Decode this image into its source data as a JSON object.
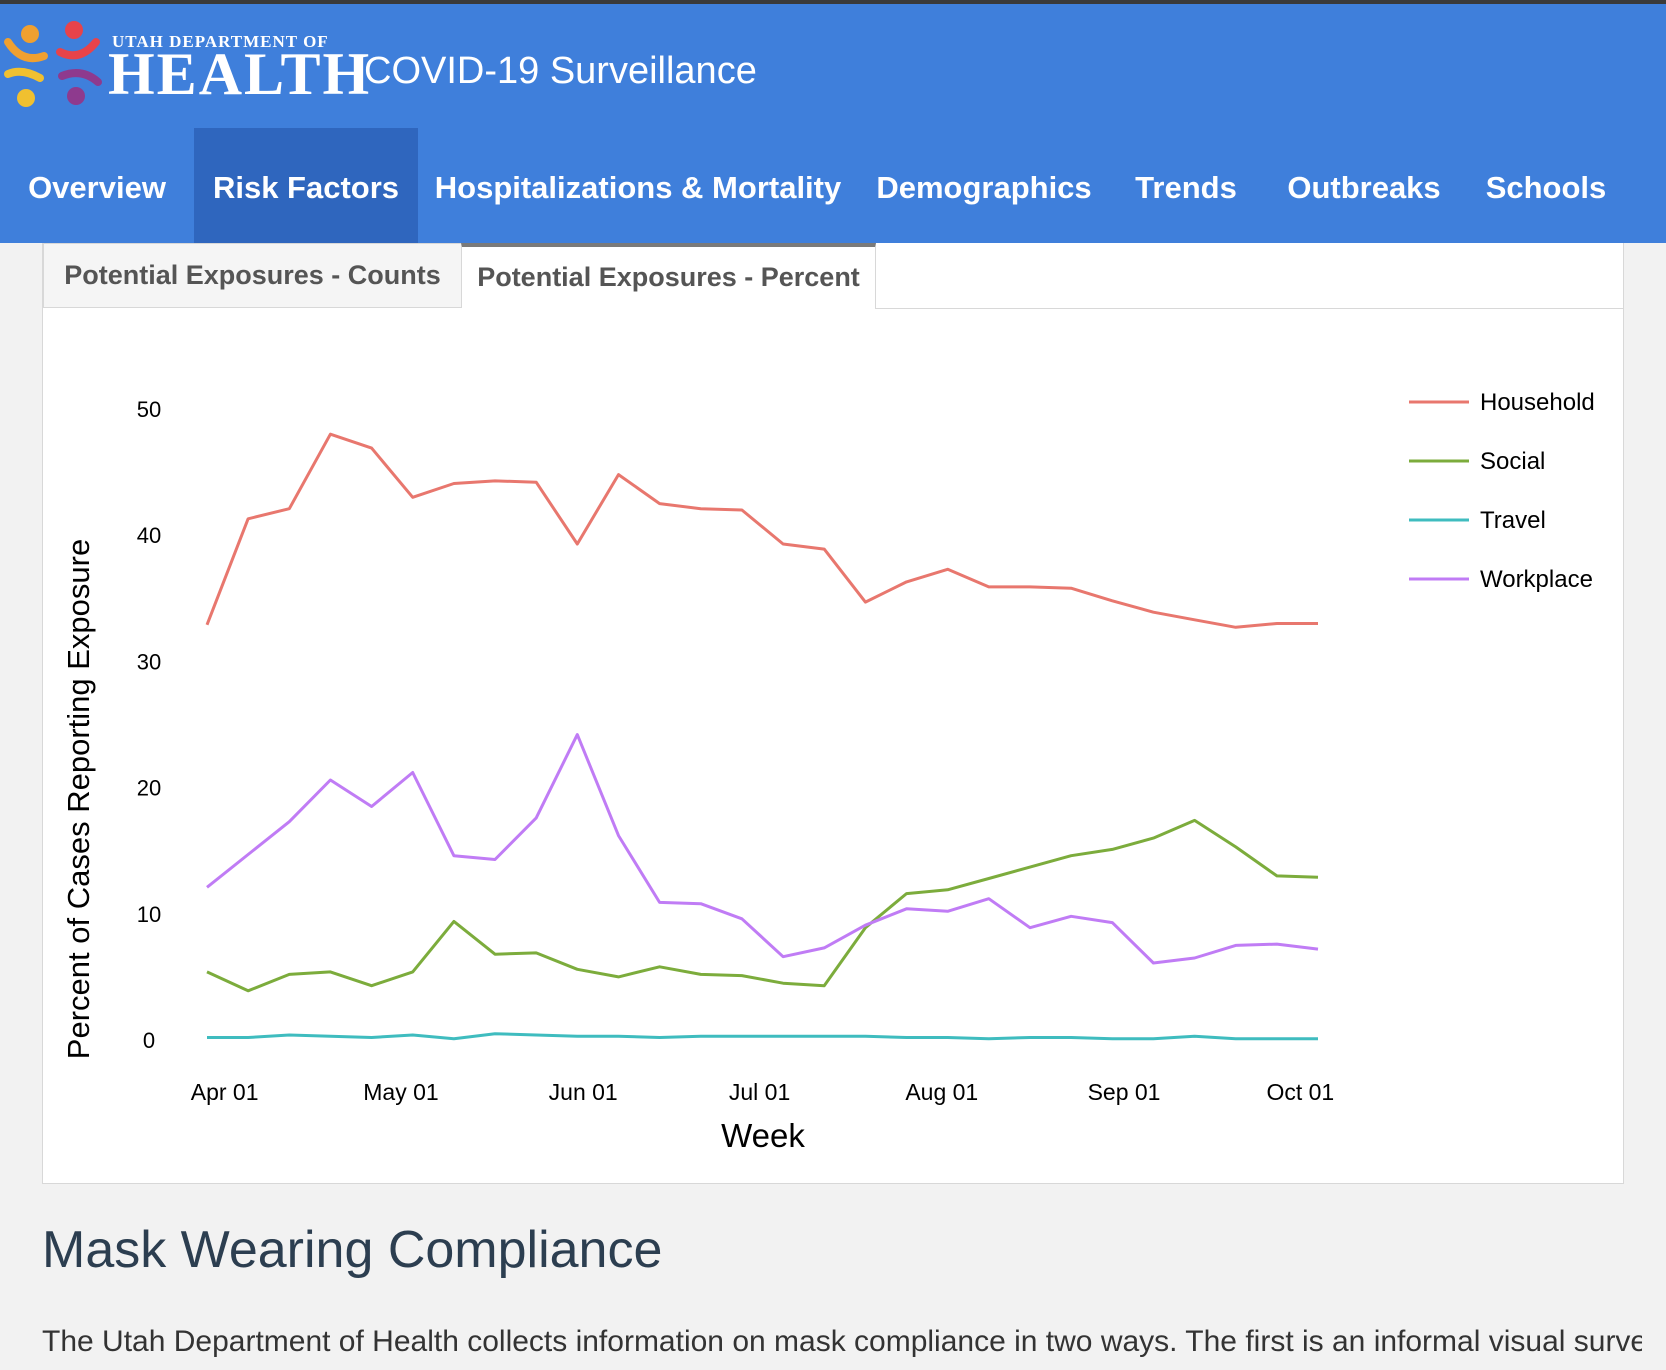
{
  "header": {
    "logo_small": "UTAH DEPARTMENT OF",
    "logo_big": "HEALTH",
    "app_title": "COVID-19 Surveillance",
    "bg_color": "#3f7fdb"
  },
  "nav": {
    "items": [
      {
        "label": "Overview"
      },
      {
        "label": "Risk Factors"
      },
      {
        "label": "Hospitalizations & Mortality"
      },
      {
        "label": "Demographics"
      },
      {
        "label": "Trends"
      },
      {
        "label": "Outbreaks"
      },
      {
        "label": "Schools"
      }
    ],
    "active": "Risk Factors"
  },
  "tabs": {
    "items": [
      {
        "label": "Potential Exposures - Counts"
      },
      {
        "label": "Potential Exposures - Percent"
      }
    ],
    "active": "Potential Exposures - Percent"
  },
  "chart_data": {
    "type": "line",
    "xlabel": "Week",
    "ylabel": "Percent of Cases Reporting Exposure",
    "ylim": [
      0,
      50
    ],
    "yticks": [
      0,
      10,
      20,
      30,
      40,
      50
    ],
    "x_ticks": [
      "Apr 01",
      "May 01",
      "Jun 01",
      "Jul 01",
      "Aug 01",
      "Sep 01",
      "Oct 01"
    ],
    "x_tick_dates": [
      "2020-04-01",
      "2020-05-01",
      "2020-06-01",
      "2020-07-01",
      "2020-08-01",
      "2020-09-01",
      "2020-10-01"
    ],
    "x": [
      "2020-03-29",
      "2020-04-05",
      "2020-04-12",
      "2020-04-19",
      "2020-04-26",
      "2020-05-03",
      "2020-05-10",
      "2020-05-17",
      "2020-05-24",
      "2020-05-31",
      "2020-06-07",
      "2020-06-14",
      "2020-06-21",
      "2020-06-28",
      "2020-07-05",
      "2020-07-12",
      "2020-07-19",
      "2020-07-26",
      "2020-08-02",
      "2020-08-09",
      "2020-08-16",
      "2020-08-23",
      "2020-08-30",
      "2020-09-06",
      "2020-09-13",
      "2020-09-20",
      "2020-09-27",
      "2020-10-04"
    ],
    "legend_position": "right",
    "grid": false,
    "series": [
      {
        "name": "Household",
        "color": "#e8776e",
        "values": [
          32.9,
          41.3,
          42.1,
          48.0,
          46.9,
          43.0,
          44.1,
          44.3,
          44.2,
          39.3,
          44.8,
          42.5,
          42.1,
          42.0,
          39.3,
          38.9,
          34.7,
          36.3,
          37.3,
          35.9,
          35.9,
          35.8,
          34.8,
          33.9,
          33.3,
          32.7,
          33.0,
          33.0
        ]
      },
      {
        "name": "Social",
        "color": "#7cac3c",
        "values": [
          5.4,
          3.9,
          5.2,
          5.4,
          4.3,
          5.4,
          9.4,
          6.8,
          6.9,
          5.6,
          5.0,
          5.8,
          5.2,
          5.1,
          4.5,
          4.3,
          8.9,
          11.6,
          11.9,
          12.8,
          13.7,
          14.6,
          15.1,
          16.0,
          17.4,
          15.3,
          13.0,
          12.9
        ]
      },
      {
        "name": "Travel",
        "color": "#3fbcbf",
        "values": [
          0.2,
          0.2,
          0.4,
          0.3,
          0.2,
          0.4,
          0.1,
          0.5,
          0.4,
          0.3,
          0.3,
          0.2,
          0.3,
          0.3,
          0.3,
          0.3,
          0.3,
          0.2,
          0.2,
          0.1,
          0.2,
          0.2,
          0.1,
          0.1,
          0.3,
          0.1,
          0.1,
          0.1
        ]
      },
      {
        "name": "Workplace",
        "color": "#c07cf5",
        "values": [
          12.1,
          14.7,
          17.3,
          20.6,
          18.5,
          21.2,
          14.6,
          14.3,
          17.6,
          24.2,
          16.2,
          10.9,
          10.8,
          9.6,
          6.6,
          7.3,
          9.1,
          10.4,
          10.2,
          11.2,
          8.9,
          9.8,
          9.3,
          6.1,
          6.5,
          7.5,
          7.6,
          7.2
        ]
      }
    ]
  },
  "section": {
    "title": "Mask Wearing Compliance",
    "text": "The Utah Department of Health collects information on mask compliance in two ways. The first is an informal visual survey"
  }
}
